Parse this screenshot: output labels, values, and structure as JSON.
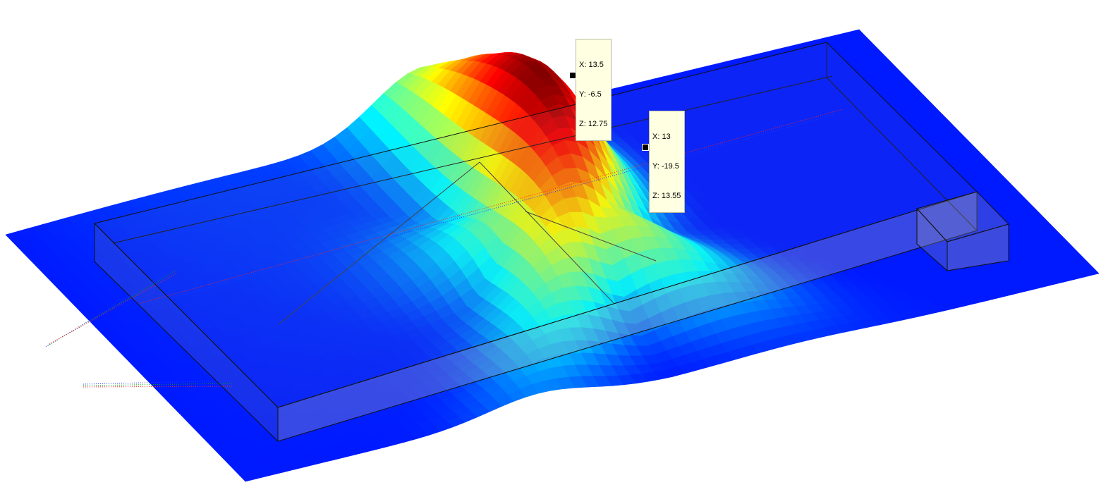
{
  "chart_data": {
    "type": "surface",
    "title": "",
    "xlabel": "",
    "ylabel": "",
    "zlabel": "",
    "colormap": "jet",
    "colors": [
      "#00008f",
      "#0000ff",
      "#00ffff",
      "#ffff00",
      "#ff0000",
      "#800000"
    ],
    "surface": {
      "description_free": true,
      "peak_z": 13.55,
      "base_z": 0
    },
    "datatips": [
      {
        "x": 13.5,
        "y": -6.5,
        "z": 12.75,
        "lines": [
          "X: 13.5",
          "Y: -6.5",
          "Z: 12.75"
        ]
      },
      {
        "x": 13,
        "y": -19.5,
        "z": 13.55,
        "lines": [
          "X: 13",
          "Y: -19.5",
          "Z: 13.55"
        ]
      }
    ]
  }
}
